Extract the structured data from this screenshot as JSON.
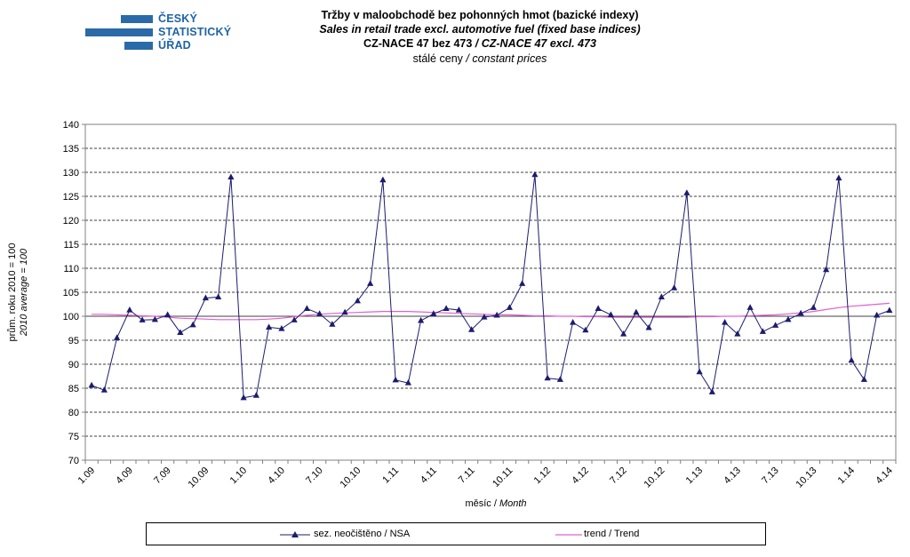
{
  "logo": {
    "lines": [
      "ČESKÝ",
      "STATISTICKÝ",
      "ÚŘAD"
    ],
    "color": "#2a6aa8"
  },
  "titles": {
    "line1": "Tržby v maloobchodě  bez pohonných  hmot  (bazické indexy)",
    "line2": "Sales  in retail  trade  excl.  automotive  fuel  (fixed base indices)",
    "line3_a": "CZ-NACE  47 bez 473 ",
    "line3_b": "/ CZ-NACE  47 excl.  473",
    "line4_a": "stálé  ceny ",
    "line4_b": "/ constant  prices"
  },
  "axes": {
    "y_label_cz": "prům. roku 2010 = 100",
    "y_label_en": "2010 average = 100",
    "x_label_cz": "měsíc / ",
    "x_label_en": "Month"
  },
  "legend": {
    "nsa": "sez. neočištěno / NSA",
    "trend": "trend / Trend"
  },
  "chart_data": {
    "type": "line",
    "ylim": [
      70,
      140
    ],
    "yticks": [
      70,
      75,
      80,
      85,
      90,
      95,
      100,
      105,
      110,
      115,
      120,
      125,
      130,
      135,
      140
    ],
    "grid": true,
    "legend_position": "bottom",
    "x_tick_labels": [
      "1.09",
      "4.09",
      "7.09",
      "10.09",
      "1.10",
      "4.10",
      "7.10",
      "10.10",
      "1.11",
      "4.11",
      "7.11",
      "10.11",
      "1.12",
      "4.12",
      "7.12",
      "10.12",
      "1.13",
      "4.13",
      "7.13",
      "10.13",
      "1.14",
      "4.14"
    ],
    "series": [
      {
        "name": "sez. neočištěno / NSA",
        "color": "#1c1c6e",
        "marker": "triangle",
        "values": [
          85.6,
          84.6,
          95.5,
          101.3,
          99.2,
          99.3,
          100.3,
          96.6,
          98.2,
          103.8,
          104.0,
          129.0,
          83.0,
          83.5,
          97.7,
          97.4,
          99.2,
          101.6,
          100.5,
          98.3,
          100.8,
          103.2,
          106.8,
          128.4,
          86.7,
          86.1,
          99.1,
          100.5,
          101.6,
          101.3,
          97.2,
          99.8,
          100.2,
          101.8,
          106.8,
          129.5,
          87.1,
          86.8,
          98.7,
          97.1,
          101.6,
          100.3,
          96.3,
          100.8,
          97.6,
          104.0,
          105.9,
          125.7,
          88.4,
          84.2,
          98.7,
          96.3,
          101.8,
          96.8,
          98.1,
          99.3,
          100.6,
          101.8,
          109.7,
          128.8,
          90.8,
          86.8,
          100.2,
          101.2
        ]
      },
      {
        "name": "trend / Trend",
        "color": "#e060d0",
        "marker": "none",
        "values": [
          100.4,
          100.4,
          100.3,
          100.2,
          100.1,
          100.0,
          99.8,
          99.6,
          99.5,
          99.4,
          99.3,
          99.3,
          99.3,
          99.3,
          99.4,
          99.6,
          99.9,
          100.2,
          100.4,
          100.6,
          100.7,
          100.8,
          100.9,
          101.0,
          101.0,
          101.0,
          100.9,
          100.8,
          100.7,
          100.6,
          100.5,
          100.4,
          100.3,
          100.3,
          100.2,
          100.1,
          100.1,
          100.0,
          100.0,
          99.9,
          99.9,
          99.8,
          99.8,
          99.8,
          99.8,
          99.8,
          99.8,
          99.8,
          99.9,
          99.9,
          100.0,
          100.0,
          100.1,
          100.2,
          100.3,
          100.5,
          100.7,
          101.0,
          101.4,
          101.8,
          102.1,
          102.3,
          102.5,
          102.7
        ]
      }
    ]
  }
}
